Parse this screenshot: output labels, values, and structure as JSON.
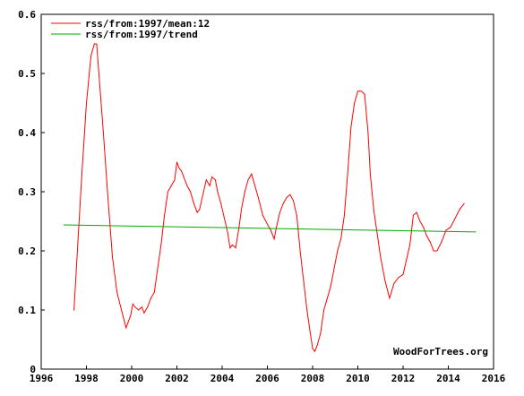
{
  "chart_data": {
    "type": "line",
    "title": "",
    "xlabel": "",
    "ylabel": "",
    "xlim": [
      1996,
      2016
    ],
    "ylim": [
      0,
      0.6
    ],
    "x_ticks": [
      "1996",
      "1998",
      "2000",
      "2002",
      "2004",
      "2006",
      "2008",
      "2010",
      "2012",
      "2014",
      "2016"
    ],
    "y_ticks": [
      "0",
      "0.1",
      "0.2",
      "0.3",
      "0.4",
      "0.5",
      "0.6"
    ],
    "grid": false,
    "legend_position": "top-left",
    "series": [
      {
        "name": "rss/from:1997/mean:12",
        "color": "#ff0000",
        "x": [
          1997.45,
          1997.6,
          1997.8,
          1998.0,
          1998.2,
          1998.35,
          1998.45,
          1998.55,
          1998.75,
          1998.95,
          1999.15,
          1999.35,
          1999.55,
          1999.75,
          1999.85,
          1999.95,
          2000.05,
          2000.15,
          2000.3,
          2000.45,
          2000.55,
          2000.7,
          2000.85,
          2001.0,
          2001.15,
          2001.3,
          2001.45,
          2001.6,
          2001.75,
          2001.9,
          2002.0,
          2002.1,
          2002.2,
          2002.3,
          2002.45,
          2002.6,
          2002.75,
          2002.9,
          2003.0,
          2003.15,
          2003.3,
          2003.45,
          2003.55,
          2003.7,
          2003.8,
          2003.95,
          2004.1,
          2004.25,
          2004.35,
          2004.45,
          2004.6,
          2004.75,
          2004.85,
          2005.0,
          2005.15,
          2005.3,
          2005.45,
          2005.6,
          2005.8,
          2006.0,
          2006.15,
          2006.3,
          2006.4,
          2006.55,
          2006.7,
          2006.85,
          2007.0,
          2007.15,
          2007.3,
          2007.45,
          2007.6,
          2007.75,
          2007.9,
          2008.0,
          2008.1,
          2008.2,
          2008.35,
          2008.5,
          2008.65,
          2008.8,
          2008.95,
          2009.1,
          2009.25,
          2009.4,
          2009.55,
          2009.7,
          2009.85,
          2010.0,
          2010.15,
          2010.3,
          2010.45,
          2010.55,
          2010.7,
          2010.85,
          2011.0,
          2011.2,
          2011.4,
          2011.6,
          2011.8,
          2012.0,
          2012.15,
          2012.3,
          2012.45,
          2012.6,
          2012.75,
          2012.9,
          2013.05,
          2013.2,
          2013.35,
          2013.5,
          2013.7,
          2013.9,
          2014.1,
          2014.3,
          2014.5,
          2014.7
        ],
        "values": [
          0.1,
          0.2,
          0.33,
          0.45,
          0.53,
          0.55,
          0.55,
          0.5,
          0.4,
          0.29,
          0.19,
          0.13,
          0.1,
          0.07,
          0.08,
          0.09,
          0.11,
          0.105,
          0.1,
          0.105,
          0.095,
          0.105,
          0.12,
          0.13,
          0.17,
          0.21,
          0.26,
          0.3,
          0.31,
          0.32,
          0.35,
          0.34,
          0.335,
          0.325,
          0.31,
          0.3,
          0.28,
          0.265,
          0.27,
          0.295,
          0.32,
          0.31,
          0.325,
          0.32,
          0.3,
          0.28,
          0.255,
          0.23,
          0.205,
          0.21,
          0.205,
          0.24,
          0.27,
          0.3,
          0.32,
          0.33,
          0.31,
          0.29,
          0.26,
          0.245,
          0.235,
          0.22,
          0.24,
          0.265,
          0.28,
          0.29,
          0.295,
          0.285,
          0.26,
          0.2,
          0.15,
          0.1,
          0.06,
          0.035,
          0.03,
          0.04,
          0.06,
          0.1,
          0.12,
          0.14,
          0.17,
          0.2,
          0.22,
          0.26,
          0.33,
          0.41,
          0.45,
          0.47,
          0.47,
          0.465,
          0.4,
          0.33,
          0.27,
          0.23,
          0.19,
          0.15,
          0.12,
          0.145,
          0.155,
          0.16,
          0.185,
          0.21,
          0.26,
          0.265,
          0.25,
          0.24,
          0.225,
          0.215,
          0.2,
          0.2,
          0.215,
          0.235,
          0.24,
          0.255,
          0.27,
          0.28
        ]
      },
      {
        "name": "rss/from:1997/trend",
        "color": "#00aa00",
        "x": [
          1997.0,
          2015.2
        ],
        "values": [
          0.244,
          0.232
        ]
      }
    ]
  },
  "credit": "WoodForTrees.org"
}
